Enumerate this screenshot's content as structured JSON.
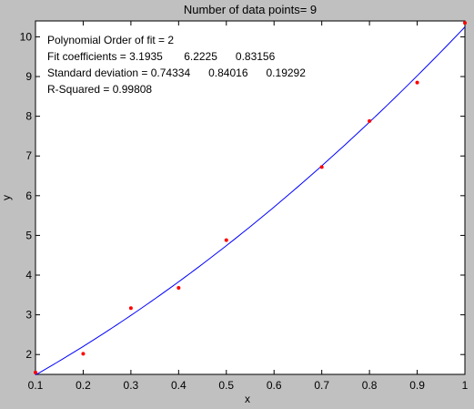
{
  "chart_data": {
    "type": "scatter",
    "title": "Number of data points= 9",
    "xlabel": "x",
    "ylabel": "y",
    "xlim": [
      0.1,
      1
    ],
    "ylim": [
      1.5,
      10.4
    ],
    "xticks": [
      0.1,
      0.2,
      0.3,
      0.4,
      0.5,
      0.6,
      0.7,
      0.8,
      0.9,
      1
    ],
    "xtick_labels": [
      "0.1",
      "0.2",
      "0.3",
      "0.4",
      "0.5",
      "0.6",
      "0.7",
      "0.8",
      "0.9",
      "1"
    ],
    "yticks": [
      2,
      3,
      4,
      5,
      6,
      7,
      8,
      9,
      10
    ],
    "ytick_labels": [
      "2",
      "3",
      "4",
      "5",
      "6",
      "7",
      "8",
      "9",
      "10"
    ],
    "grid": false,
    "colors": {
      "points": "#ff0000",
      "fit_line": "#0000ff",
      "background": "#c0c0c0",
      "axes": "#ffffff"
    },
    "series": [
      {
        "kind": "points",
        "x": [
          0.1,
          0.2,
          0.3,
          0.4,
          0.5,
          0.7,
          0.8,
          0.9,
          1.0
        ],
        "y": [
          1.55,
          2.02,
          3.17,
          3.68,
          4.88,
          6.72,
          7.88,
          8.85,
          10.35
        ]
      },
      {
        "kind": "fit-line",
        "coefficients": [
          3.1935,
          6.2225,
          0.83156
        ]
      }
    ],
    "annotations": [
      "Polynomial Order of fit = 2",
      "Fit coefficients = 3.1935       6.2225      0.83156",
      "Standard deviation = 0.74334      0.84016      0.19292",
      "R-Squared = 0.99808"
    ]
  }
}
